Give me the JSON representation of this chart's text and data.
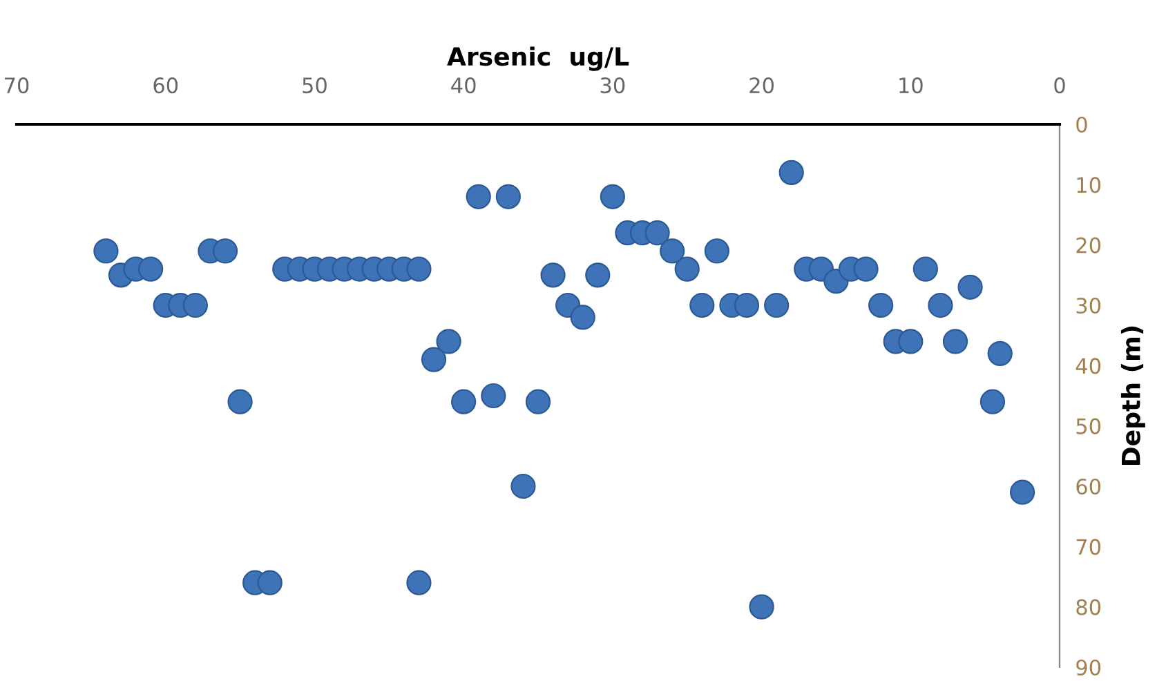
{
  "chart_data": {
    "type": "scatter",
    "xlabel": "Arsenic  ug/L",
    "ylabel": "Depth (m)",
    "xlim": [
      70,
      0
    ],
    "xticks": [
      70,
      60,
      50,
      40,
      30,
      20,
      10,
      0
    ],
    "ylim": [
      90,
      0
    ],
    "yticks": [
      0,
      10,
      20,
      30,
      40,
      50,
      60,
      70,
      80,
      90
    ],
    "grid": false,
    "marker": "circle",
    "series": [
      {
        "color": "#3f73b8",
        "x": [
          64,
          63,
          62,
          61,
          60,
          59,
          58,
          57,
          56,
          52,
          51,
          50,
          49,
          48,
          47,
          46,
          45,
          44,
          43,
          39,
          37,
          34,
          33,
          32,
          31,
          30,
          29,
          28,
          27,
          26,
          25,
          23,
          24,
          22,
          21,
          19,
          18,
          17,
          16,
          15,
          14,
          13,
          9,
          6,
          12,
          8,
          11,
          10,
          7,
          4,
          4.5,
          2.5,
          20,
          35,
          41,
          42,
          55,
          40,
          38,
          36,
          54,
          53,
          43
        ],
        "values": [
          21,
          25,
          24,
          24,
          30,
          30,
          30,
          21,
          21,
          24,
          24,
          24,
          24,
          24,
          24,
          24,
          24,
          24,
          24,
          12,
          12,
          25,
          30,
          32,
          25,
          12,
          18,
          18,
          18,
          21,
          24,
          21,
          30,
          30,
          30,
          30,
          8,
          24,
          24,
          26,
          24,
          24,
          24,
          27,
          30,
          30,
          36,
          36,
          36,
          38,
          46,
          61,
          80,
          46,
          36,
          39,
          46,
          46,
          45,
          60,
          76,
          76,
          76
        ]
      }
    ]
  }
}
